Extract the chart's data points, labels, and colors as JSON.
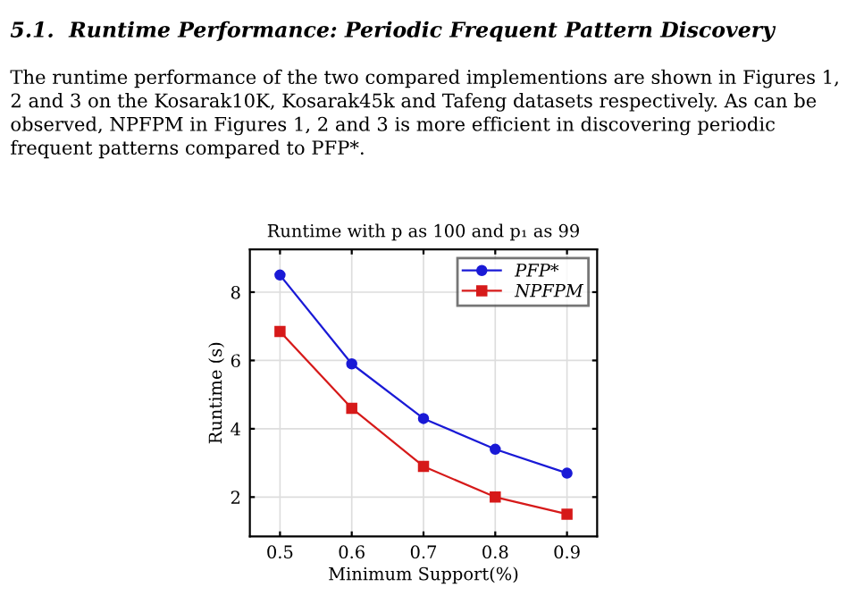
{
  "chart_data": {
    "type": "line",
    "title": "Runtime with p as 100 and p₁ as 99",
    "xlabel": "Minimum Support(%)",
    "ylabel": "Runtime (s)",
    "annotations": [
      "5.1.  Runtime Performance: Periodic Frequent Pattern Discovery",
      "The runtime performance of the two compared implementions are shown in Figures 1, 2 and 3 on the Kosarak10K, Kosarak45k and Tafeng datasets respectively. As can be observed, NPFPM in Figures 1, 2 and 3 is more efficient in discovering periodic frequent patterns compared to PFP*."
    ],
    "x": [
      0.5,
      0.6,
      0.7,
      0.8,
      0.9
    ],
    "series": [
      {
        "name": "PFP*",
        "color": "#1a1ad6",
        "marker": "circle",
        "values": [
          8.5,
          5.9,
          4.3,
          3.4,
          2.7
        ]
      },
      {
        "name": "NPFPM",
        "color": "#d61a1a",
        "marker": "square",
        "values": [
          6.85,
          4.6,
          2.9,
          2.0,
          1.5
        ]
      }
    ],
    "xlim": [
      0.458,
      0.942
    ],
    "ylim": [
      0.85,
      9.25
    ],
    "xticks": [
      0.5,
      0.6,
      0.7,
      0.8,
      0.9
    ],
    "yticks": [
      2,
      4,
      6,
      8
    ],
    "grid": true,
    "legend": "top right"
  }
}
